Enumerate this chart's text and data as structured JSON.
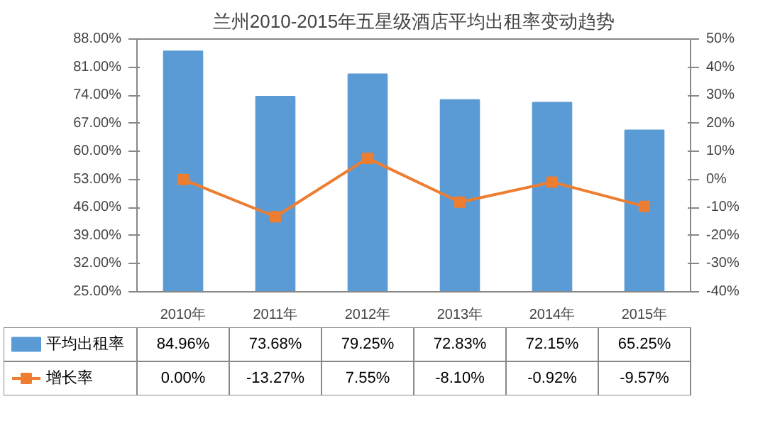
{
  "chart_data": {
    "type": "bar",
    "title": "兰州2010-2015年五星级酒店平均出租率变动趋势",
    "categories": [
      "2010年",
      "2011年",
      "2012年",
      "2013年",
      "2014年",
      "2015年"
    ],
    "series": [
      {
        "name": "平均出租率",
        "color": "#5b9bd5",
        "values": [
          84.96,
          73.68,
          79.25,
          72.83,
          72.15,
          65.25
        ],
        "value_labels": [
          "84.96%",
          "73.68%",
          "79.25%",
          "72.83%",
          "72.15%",
          "65.25%"
        ]
      },
      {
        "name": "增长率",
        "type": "line",
        "axis": "y2",
        "color": "#ed7d31",
        "values": [
          0.0,
          -13.27,
          7.55,
          -8.1,
          -0.92,
          -9.57
        ],
        "value_labels": [
          "0.00%",
          "-13.27%",
          "7.55%",
          "-8.10%",
          "-0.92%",
          "-9.57%"
        ]
      }
    ],
    "ylim": [
      25,
      88
    ],
    "yticks": [
      {
        "value": 25,
        "label": "25.00%"
      },
      {
        "value": 32,
        "label": "32.00%"
      },
      {
        "value": 39,
        "label": "39.00%"
      },
      {
        "value": 46,
        "label": "46.00%"
      },
      {
        "value": 53,
        "label": "53.00%"
      },
      {
        "value": 60,
        "label": "60.00%"
      },
      {
        "value": 67,
        "label": "67.00%"
      },
      {
        "value": 74,
        "label": "74.00%"
      },
      {
        "value": 81,
        "label": "81.00%"
      },
      {
        "value": 88,
        "label": "88.00%"
      }
    ],
    "y2lim": [
      -40,
      50
    ],
    "y2ticks": [
      {
        "value": -40,
        "label": "-40%"
      },
      {
        "value": -30,
        "label": "-30%"
      },
      {
        "value": -20,
        "label": "-20%"
      },
      {
        "value": -10,
        "label": "-10%"
      },
      {
        "value": 0,
        "label": "0%"
      },
      {
        "value": 10,
        "label": "10%"
      },
      {
        "value": 20,
        "label": "20%"
      },
      {
        "value": 30,
        "label": "30%"
      },
      {
        "value": 40,
        "label": "40%"
      },
      {
        "value": 50,
        "label": "50%"
      }
    ],
    "marker": "square",
    "line_style": "solid",
    "legend": "bottom",
    "grid": false
  }
}
